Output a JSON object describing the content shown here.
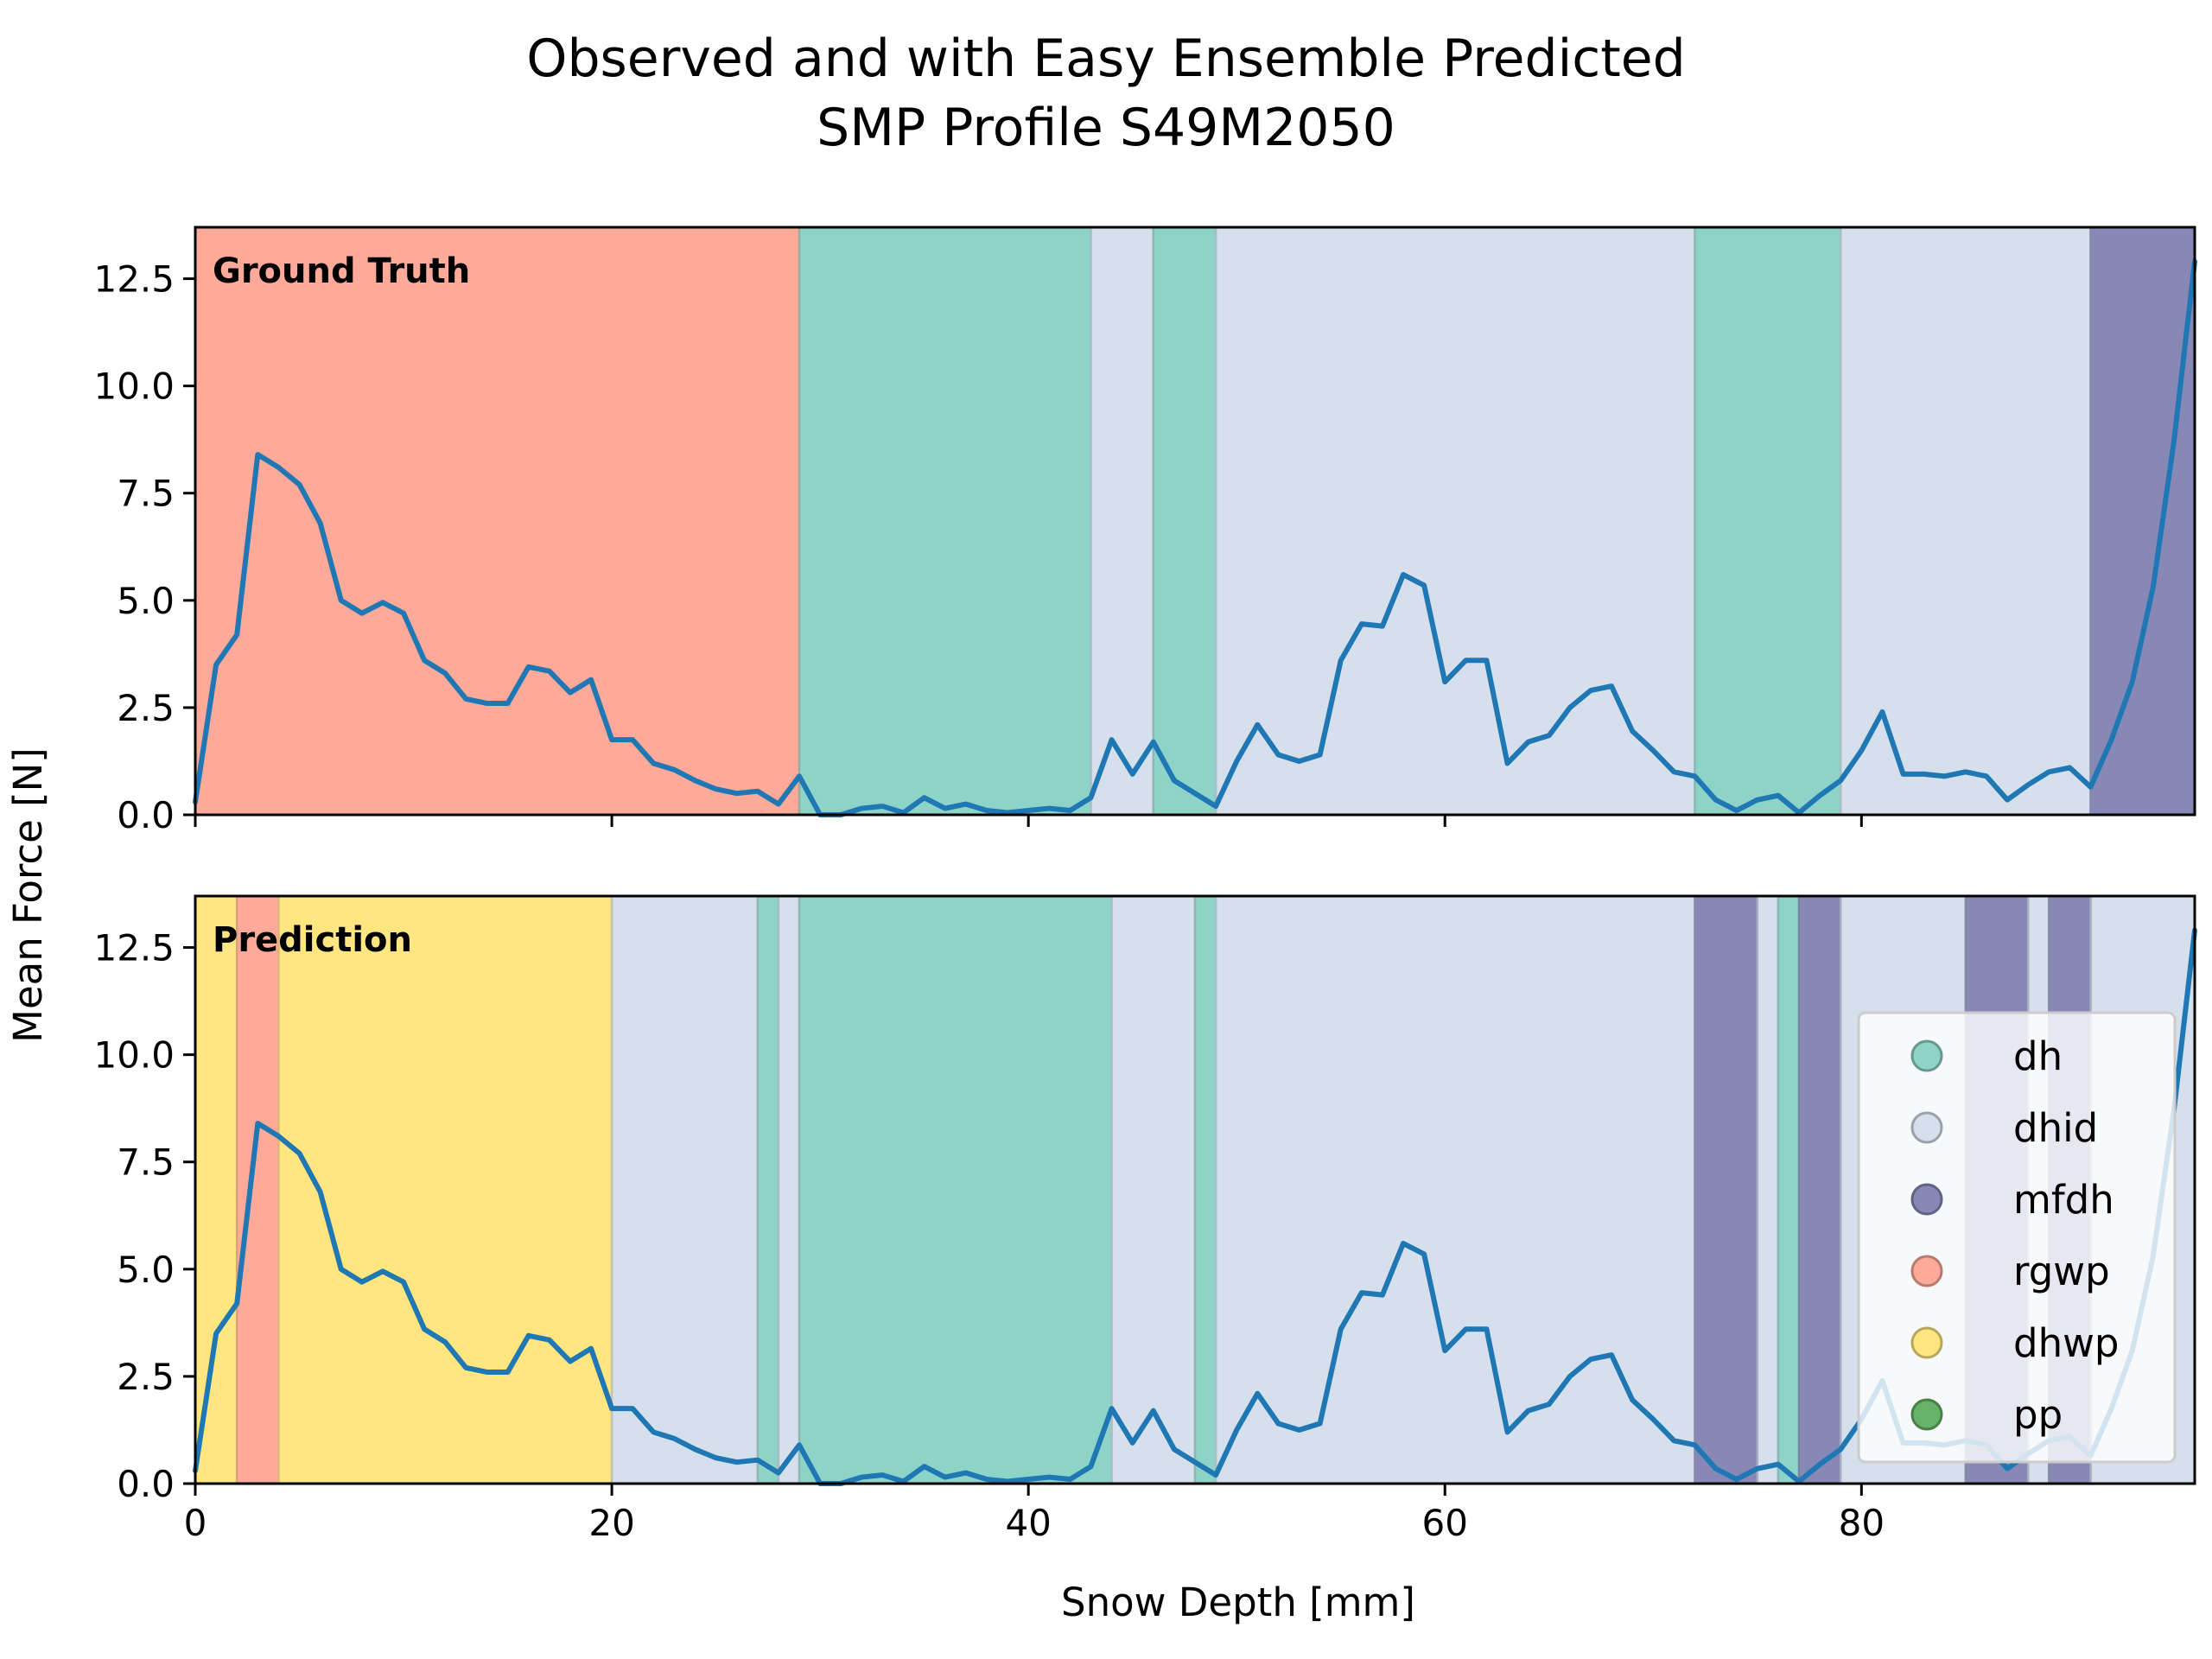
{
  "chart_data": {
    "type": "line",
    "title_lines": [
      "Observed and with Easy Ensemble Predicted",
      "SMP Profile S49M2050"
    ],
    "xlabel": "Snow Depth [mm]",
    "ylabel": "Mean Force [N]",
    "xlim": [
      0,
      96
    ],
    "ylim": [
      0,
      13.7
    ],
    "xticks": [
      0,
      20,
      40,
      60,
      80
    ],
    "yticks": [
      0.0,
      2.5,
      5.0,
      7.5,
      10.0,
      12.5
    ],
    "xtick_labels": [
      "0",
      "20",
      "40",
      "60",
      "80"
    ],
    "ytick_labels": [
      "0.0",
      "2.5",
      "5.0",
      "7.5",
      "10.0",
      "12.5"
    ],
    "line_color": "#1f77b4",
    "grid": false,
    "legend_placement": "center-right",
    "classes": [
      {
        "name": "dh",
        "color": "#8dd3c7"
      },
      {
        "name": "dhid",
        "color": "#d6e0ec"
      },
      {
        "name": "mfdh",
        "color": "#8888b7"
      },
      {
        "name": "rgwp",
        "color": "#fdaa9a"
      },
      {
        "name": "dhwp",
        "color": "#ffe680"
      },
      {
        "name": "pp",
        "color": "#66b266"
      }
    ],
    "force_profile": {
      "x": [
        0,
        1,
        2,
        3,
        4,
        5,
        6,
        7,
        8,
        9,
        10,
        11,
        12,
        13,
        14,
        15,
        16,
        17,
        18,
        19,
        20,
        21,
        22,
        23,
        24,
        25,
        26,
        27,
        28,
        29,
        30,
        31,
        32,
        33,
        34,
        35,
        36,
        37,
        38,
        39,
        40,
        41,
        42,
        43,
        44,
        45,
        46,
        47,
        48,
        49,
        50,
        51,
        52,
        53,
        54,
        55,
        56,
        57,
        58,
        59,
        60,
        61,
        62,
        63,
        64,
        65,
        66,
        67,
        68,
        69,
        70,
        71,
        72,
        73,
        74,
        75,
        76,
        77,
        78,
        79,
        80,
        81,
        82,
        83,
        84,
        85,
        86,
        87,
        88,
        89,
        90,
        91,
        92,
        93,
        94,
        95,
        96
      ],
      "y": [
        0.3,
        3.5,
        4.2,
        8.4,
        8.1,
        7.7,
        6.8,
        5.0,
        4.7,
        4.95,
        4.7,
        3.6,
        3.3,
        2.7,
        2.6,
        2.6,
        3.45,
        3.35,
        2.85,
        3.15,
        1.75,
        1.75,
        1.2,
        1.05,
        0.8,
        0.6,
        0.5,
        0.55,
        0.25,
        0.9,
        0.0,
        0.0,
        0.15,
        0.2,
        0.05,
        0.4,
        0.15,
        0.25,
        0.1,
        0.05,
        0.1,
        0.15,
        0.1,
        0.4,
        1.75,
        0.95,
        1.7,
        0.8,
        0.5,
        0.2,
        1.25,
        2.1,
        1.4,
        1.25,
        1.4,
        3.6,
        4.45,
        4.4,
        5.6,
        5.35,
        3.1,
        3.6,
        3.6,
        1.2,
        1.7,
        1.85,
        2.5,
        2.9,
        3.0,
        1.95,
        1.5,
        1.0,
        0.9,
        0.35,
        0.1,
        0.35,
        0.45,
        0.05,
        0.45,
        0.8,
        1.5,
        2.4,
        0.95,
        0.95,
        0.9,
        1.0,
        0.9,
        0.35,
        0.7,
        1.0,
        1.1,
        0.65,
        1.75,
        3.1,
        5.3,
        8.7,
        12.9
      ]
    },
    "panels": [
      {
        "label": "Ground Truth",
        "segments": [
          {
            "class": "rgwp",
            "start": 0,
            "end": 29
          },
          {
            "class": "dh",
            "start": 29,
            "end": 43
          },
          {
            "class": "dhid",
            "start": 43,
            "end": 46
          },
          {
            "class": "dh",
            "start": 46,
            "end": 49
          },
          {
            "class": "dhid",
            "start": 49,
            "end": 72
          },
          {
            "class": "dh",
            "start": 72,
            "end": 79
          },
          {
            "class": "dhid",
            "start": 79,
            "end": 91
          },
          {
            "class": "mfdh",
            "start": 91,
            "end": 96
          }
        ]
      },
      {
        "label": "Prediction",
        "segments": [
          {
            "class": "dhwp",
            "start": 0,
            "end": 2
          },
          {
            "class": "rgwp",
            "start": 2,
            "end": 4
          },
          {
            "class": "dhwp",
            "start": 4,
            "end": 20
          },
          {
            "class": "dhid",
            "start": 20,
            "end": 27
          },
          {
            "class": "dh",
            "start": 27,
            "end": 28
          },
          {
            "class": "dhid",
            "start": 28,
            "end": 29
          },
          {
            "class": "dh",
            "start": 29,
            "end": 44
          },
          {
            "class": "dhid",
            "start": 44,
            "end": 48
          },
          {
            "class": "dh",
            "start": 48,
            "end": 49
          },
          {
            "class": "dhid",
            "start": 49,
            "end": 72
          },
          {
            "class": "mfdh",
            "start": 72,
            "end": 75
          },
          {
            "class": "dhid",
            "start": 75,
            "end": 76
          },
          {
            "class": "dh",
            "start": 76,
            "end": 77
          },
          {
            "class": "mfdh",
            "start": 77,
            "end": 79
          },
          {
            "class": "dhid",
            "start": 79,
            "end": 85
          },
          {
            "class": "mfdh",
            "start": 85,
            "end": 88
          },
          {
            "class": "dhid",
            "start": 88,
            "end": 89
          },
          {
            "class": "mfdh",
            "start": 89,
            "end": 91
          },
          {
            "class": "dhid",
            "start": 91,
            "end": 96
          }
        ]
      }
    ]
  }
}
